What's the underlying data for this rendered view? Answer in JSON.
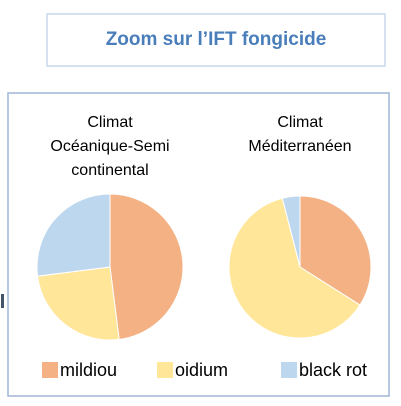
{
  "title": "Zoom sur l’IFT fongicide",
  "chart_data": [
    {
      "type": "pie",
      "title": [
        "Climat",
        "Océanique-Semi",
        "continental"
      ],
      "categories": [
        "mildiou",
        "oidium",
        "black rot"
      ],
      "values": [
        48,
        25,
        27
      ],
      "colors": [
        "#f4b183",
        "#ffe699",
        "#bdd7ee"
      ]
    },
    {
      "type": "pie",
      "title": [
        "Climat",
        "Méditerranéen"
      ],
      "categories": [
        "mildiou",
        "oidium",
        "black rot"
      ],
      "values": [
        34,
        62,
        4
      ],
      "colors": [
        "#f4b183",
        "#ffe699",
        "#bdd7ee"
      ]
    }
  ]
}
